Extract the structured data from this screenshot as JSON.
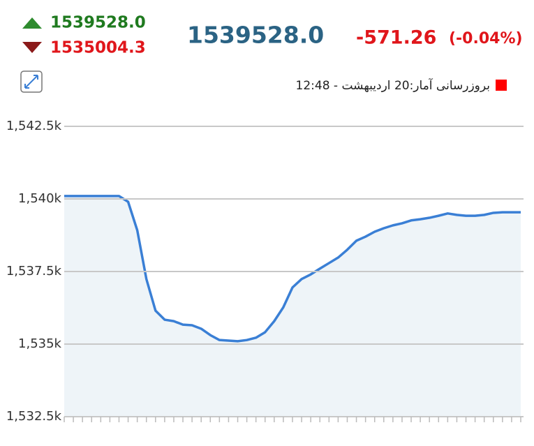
{
  "header": {
    "high": "1539528.0",
    "low": "1535004.3",
    "last": "1539528.0",
    "change": "-571.26",
    "change_percent": "(-0.04%)",
    "update_text": "بروزرسانی آمار:20 اردیبهشت - 12:48"
  },
  "chart_data": {
    "type": "line",
    "categories": [
      null,
      null,
      null,
      null,
      null,
      null,
      null,
      null,
      null,
      null,
      null,
      null,
      null,
      null,
      null,
      null,
      null,
      null,
      null,
      null,
      null,
      null,
      null,
      null,
      null,
      null,
      null,
      null,
      null,
      null,
      null,
      null,
      null,
      null,
      null,
      null,
      null,
      null,
      null,
      null,
      null,
      null,
      null,
      null,
      null,
      null,
      null,
      null,
      null,
      null,
      null
    ],
    "series": [
      {
        "color": "#3a7fd5",
        "values": [
          1540100,
          1540100,
          1540100,
          1540100,
          1540100,
          1540100,
          1540100,
          1539900,
          1538920,
          1537240,
          1536150,
          1535840,
          1535790,
          1535670,
          1535650,
          1535530,
          1535310,
          1535140,
          1535120,
          1535100,
          1535140,
          1535220,
          1535410,
          1535790,
          1536270,
          1536950,
          1537240,
          1537400,
          1537600,
          1537790,
          1537980,
          1538250,
          1538560,
          1538700,
          1538870,
          1538990,
          1539090,
          1539160,
          1539260,
          1539300,
          1539350,
          1539420,
          1539500,
          1539450,
          1539420,
          1539420,
          1539450,
          1539520,
          1539540,
          1539540,
          1539540
        ]
      }
    ],
    "ylim": [
      1532500,
      1542500
    ],
    "yticks": [
      {
        "value": 1532500,
        "label": "1,532.5k"
      },
      {
        "value": 1535000,
        "label": "1,535k"
      },
      {
        "value": 1537500,
        "label": "1,537.5k"
      },
      {
        "value": 1540000,
        "label": "1,540k"
      },
      {
        "value": 1542500,
        "label": "1,542.5k"
      }
    ],
    "grid": true,
    "area_color": "#eef4f8"
  }
}
